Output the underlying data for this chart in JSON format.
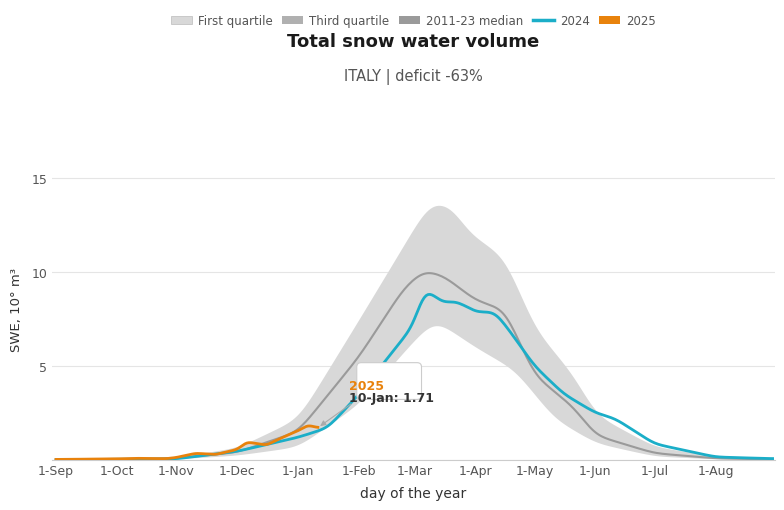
{
  "title": "Total snow water volume",
  "subtitle": "ITALY | deficit -63%",
  "xlabel": "day of the year",
  "ylabel": "SWE, 10° m³",
  "ylim": [
    0,
    16
  ],
  "yticks": [
    0,
    5,
    10,
    15
  ],
  "color_q1_fill": "#d8d8d8",
  "color_median": "#9a9a9a",
  "color_2024": "#1baec8",
  "color_2025": "#e8820c",
  "legend_labels": [
    "First quartile",
    "Third quartile",
    "2011-23 median",
    "2024",
    "2025"
  ],
  "annotation_label": "2025",
  "annotation_date": "10-Jan: 1.71",
  "xtick_labels": [
    "1-Sep",
    "1-Oct",
    "1-Nov",
    "1-Dec",
    "1-Jan",
    "1-Feb",
    "1-Mar",
    "1-Apr",
    "1-May",
    "1-Jun",
    "1-Jul",
    "1-Aug"
  ],
  "background_color": "#ffffff",
  "grid_color": "#e5e5e5"
}
